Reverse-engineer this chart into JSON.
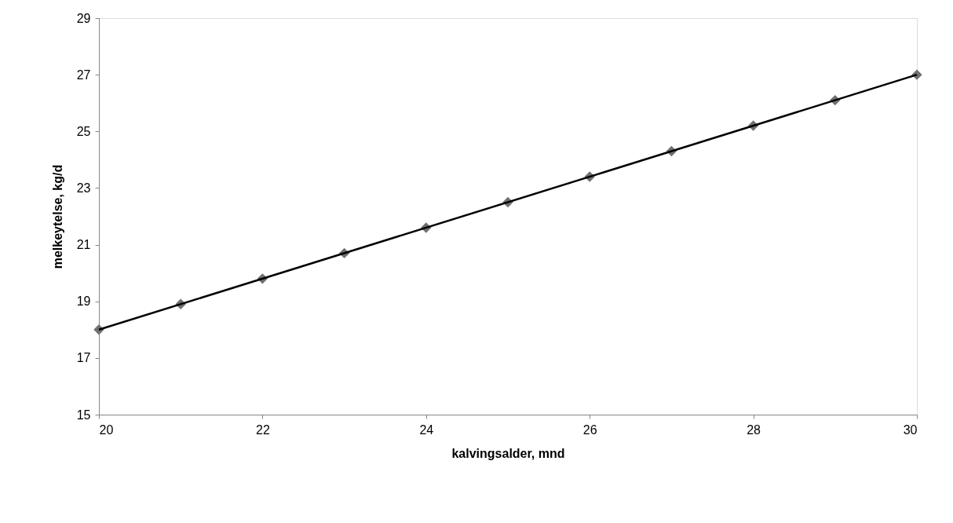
{
  "chart_data": {
    "type": "scatter",
    "xlabel": "kalvingsalder, mnd",
    "ylabel": "melkeytelse, kg/d",
    "x": [
      20,
      21,
      22,
      23,
      24,
      25,
      26,
      27,
      28,
      29,
      30
    ],
    "series": [
      {
        "color": "#707070",
        "marker": "diamond",
        "values": [
          18,
          18.9,
          19.8,
          20.7,
          21.6,
          22.5,
          23.4,
          24.3,
          25.2,
          26.1,
          27
        ]
      },
      {
        "type": "line",
        "color": "#000000",
        "marker": "none",
        "line_style": "solid",
        "x": [
          20,
          30
        ],
        "values": [
          18,
          27
        ]
      }
    ],
    "xlim": [
      20,
      30
    ],
    "xticks": [
      20,
      22,
      24,
      26,
      28,
      30
    ],
    "ylim": [
      15,
      29
    ],
    "yticks": [
      15,
      17,
      19,
      21,
      23,
      25,
      27,
      29
    ],
    "grid": false
  }
}
